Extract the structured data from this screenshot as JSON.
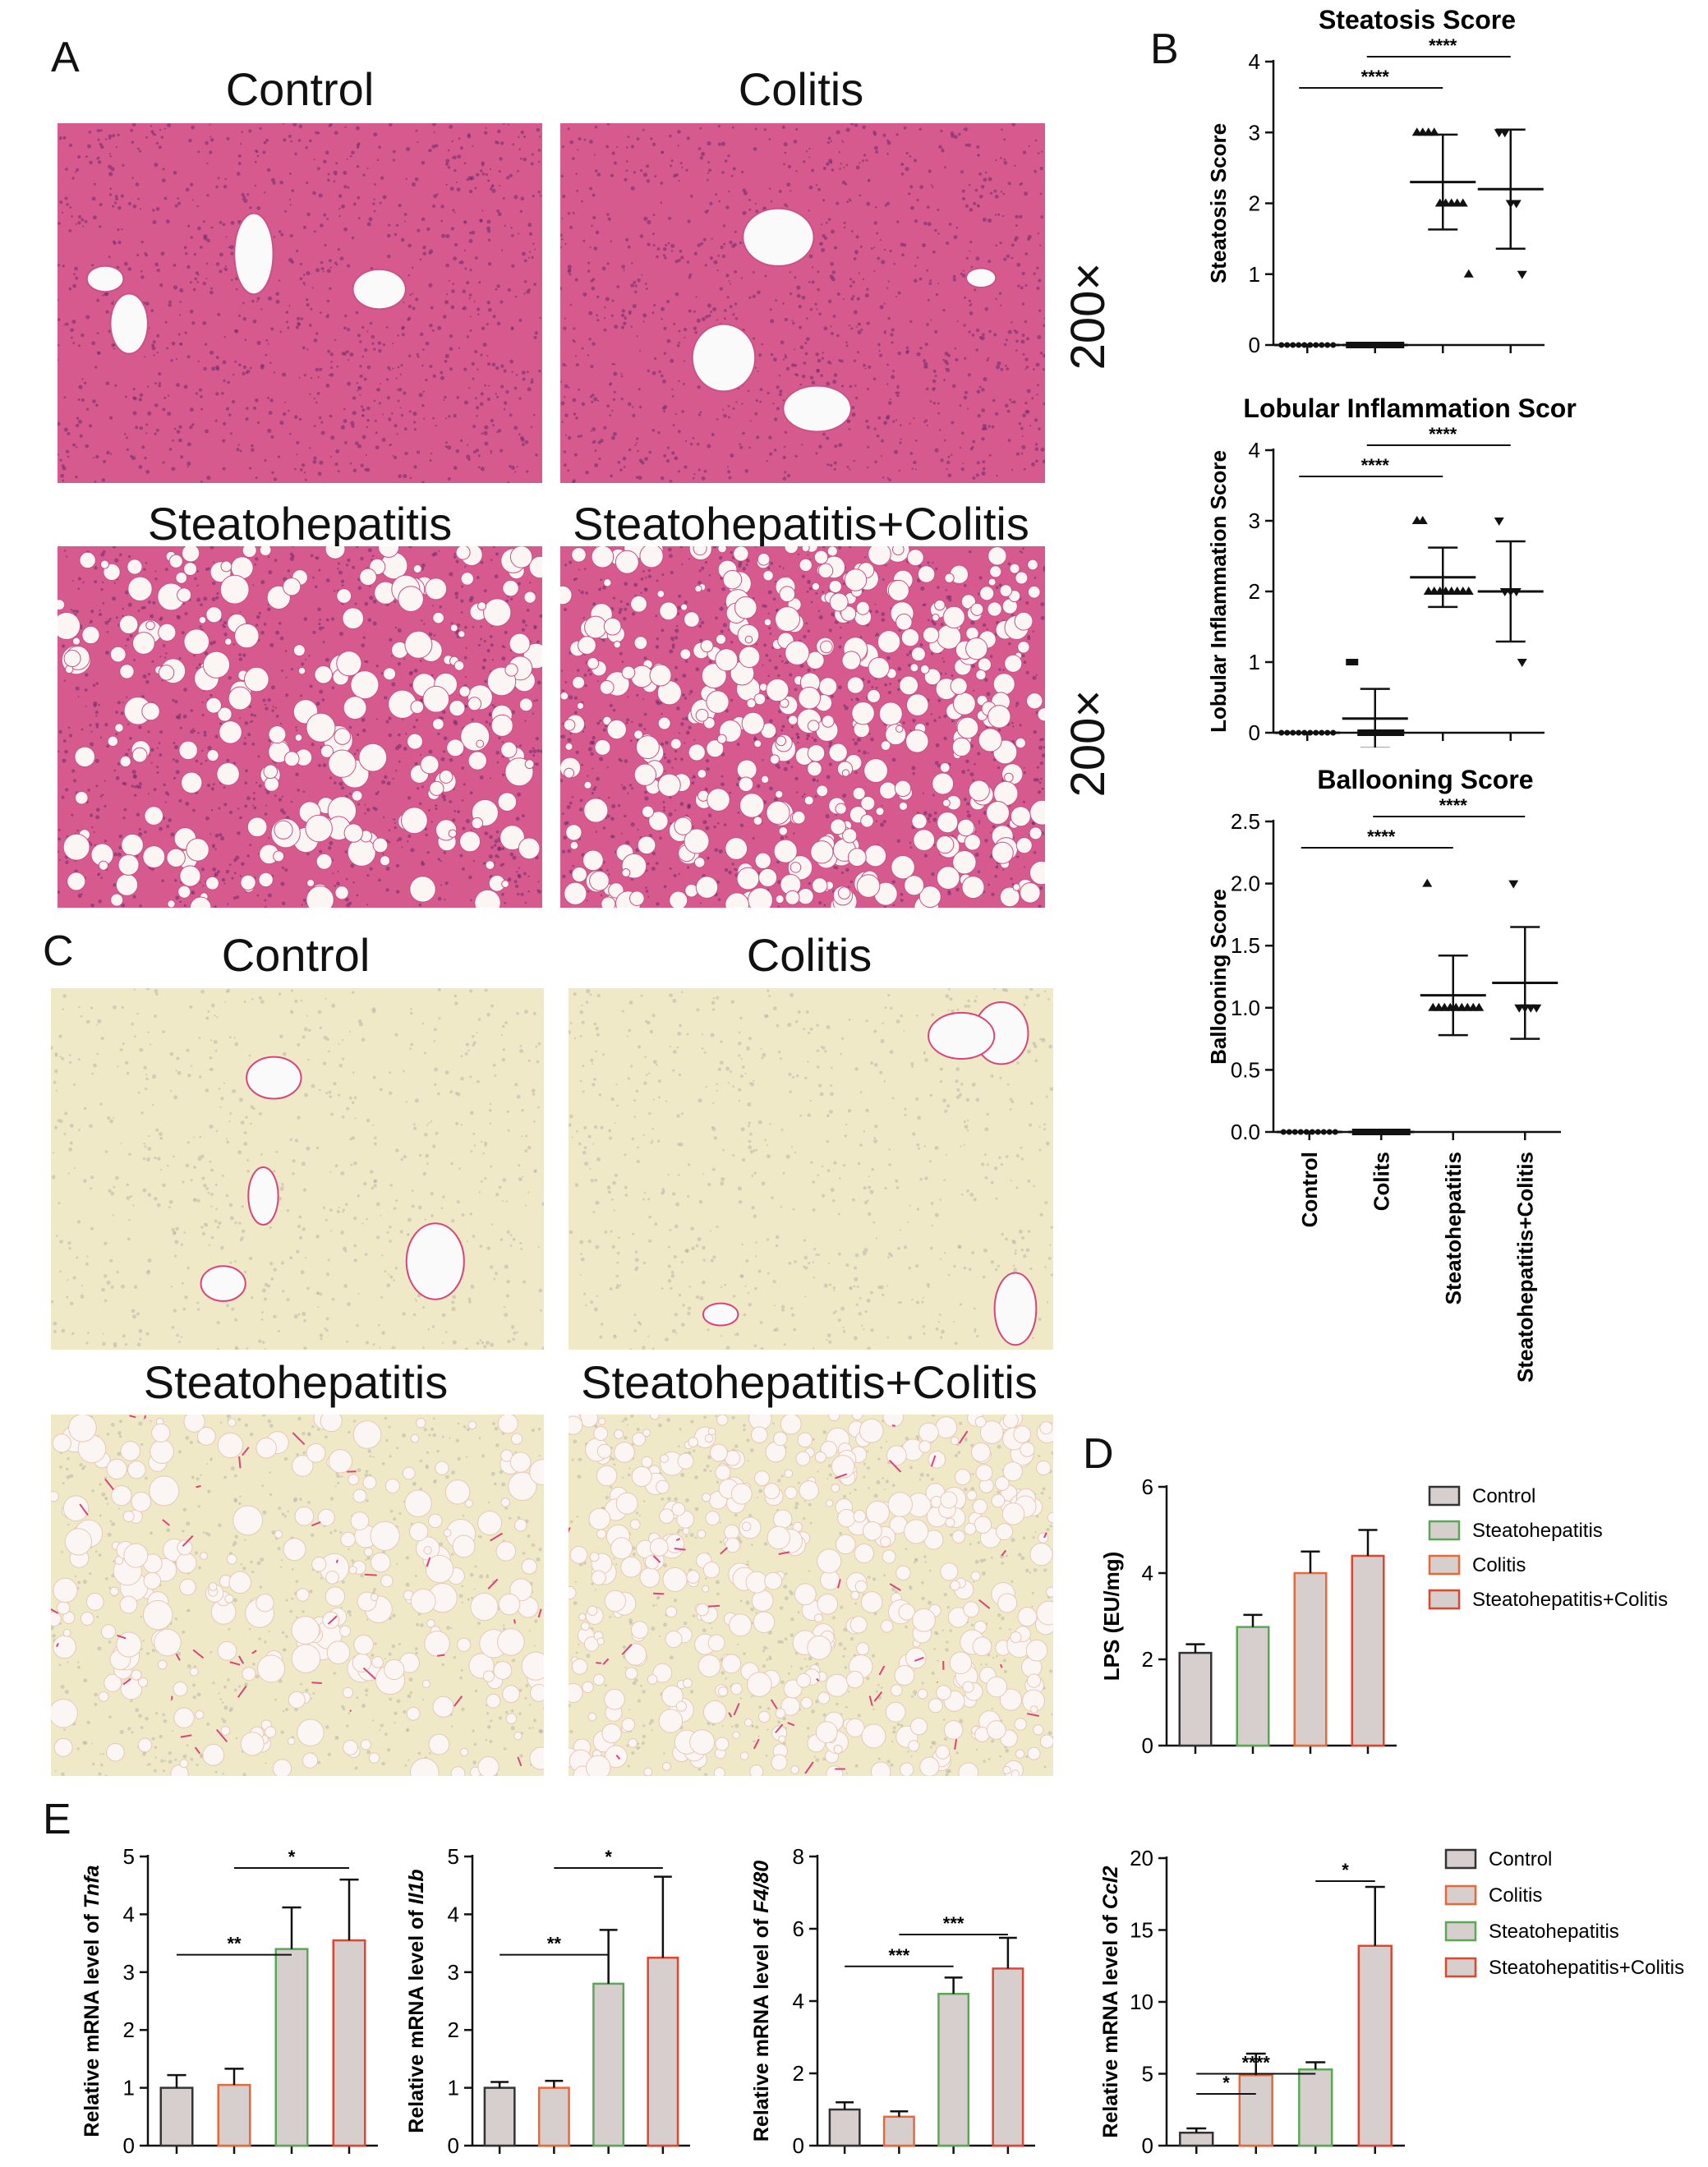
{
  "panels": {
    "A": {
      "letter": "A",
      "titles": [
        "Control",
        "Colitis",
        "Steatohepatitis",
        "Steatohepatitis+Colitis"
      ],
      "magnification": "200×"
    },
    "C": {
      "letter": "C",
      "titles": [
        "Control",
        "Colitis",
        "Steatohepatitis",
        "Steatohepatitis+Colitis"
      ]
    },
    "B": {
      "letter": "B"
    },
    "D": {
      "letter": "D"
    },
    "E": {
      "letter": "E"
    }
  },
  "colors": {
    "he_pink": "#d65a8e",
    "he_light": "#f2b7d0",
    "sirius_bg": "#efe9c8",
    "sirius_red": "#d9447a",
    "bar_fill": "#d6cfcd",
    "control_edge": "#333333",
    "steato_edge": "#5aa856",
    "colitis_edge": "#e8683a",
    "combo_edge": "#e0462f"
  },
  "chart_data": [
    {
      "id": "B1",
      "type": "scatter",
      "title": "Steatosis Score",
      "ylabel": "Steatosis Score",
      "ylim": [
        0,
        4
      ],
      "yticks": [
        "0",
        "1",
        "2",
        "3",
        "4"
      ],
      "categories": [
        "Control",
        "Colits",
        "Steatohepatitis",
        "Steatohepatitis+Colitis"
      ],
      "points": [
        [
          0,
          0,
          0,
          0,
          0,
          0,
          0,
          0,
          0,
          0
        ],
        [
          0,
          0,
          0,
          0,
          0,
          0,
          0,
          0,
          0,
          0
        ],
        [
          3,
          3,
          3,
          3,
          2,
          2,
          2,
          2,
          2,
          1
        ],
        [
          3,
          3,
          2,
          2,
          1
        ]
      ],
      "mean": [
        0,
        0,
        2.3,
        2.2
      ],
      "sd": [
        0,
        0,
        0.67,
        0.84
      ],
      "sig": [
        {
          "from": 0,
          "to": 2,
          "label": "****"
        },
        {
          "from": 1,
          "to": 3,
          "label": "****"
        }
      ]
    },
    {
      "id": "B2",
      "type": "scatter",
      "title": "Lobular Inflammation Score",
      "ylabel": "Lobular Inflammation Score",
      "ylim": [
        0,
        4
      ],
      "yticks": [
        "0",
        "1",
        "2",
        "3",
        "4"
      ],
      "categories": [
        "Control",
        "Colits",
        "Steatohepatitis",
        "Steatohepatitis+Colitis"
      ],
      "points": [
        [
          0,
          0,
          0,
          0,
          0,
          0,
          0,
          0,
          0,
          0
        ],
        [
          1,
          1,
          0,
          0,
          0,
          0,
          0,
          0,
          0,
          0
        ],
        [
          3,
          3,
          2,
          2,
          2,
          2,
          2,
          2,
          2,
          2
        ],
        [
          3,
          2,
          2,
          2,
          1
        ]
      ],
      "mean": [
        0,
        0.2,
        2.2,
        2.0
      ],
      "sd": [
        0,
        0.42,
        0.42,
        0.71
      ],
      "sig": [
        {
          "from": 0,
          "to": 2,
          "label": "****"
        },
        {
          "from": 1,
          "to": 3,
          "label": "****"
        }
      ]
    },
    {
      "id": "B3",
      "type": "scatter",
      "title": "Ballooning Score",
      "ylabel": "Ballooning Score",
      "ylim": [
        0,
        2.5
      ],
      "yticks": [
        "0.0",
        "0.5",
        "1.0",
        "1.5",
        "2.0",
        "2.5"
      ],
      "categories": [
        "Control",
        "Colits",
        "Steatohepatitis",
        "Steatohepatitis+Colitis"
      ],
      "points": [
        [
          0,
          0,
          0,
          0,
          0,
          0,
          0,
          0,
          0,
          0
        ],
        [
          0,
          0,
          0,
          0,
          0,
          0,
          0,
          0,
          0,
          0
        ],
        [
          2,
          1,
          1,
          1,
          1,
          1,
          1,
          1,
          1,
          1
        ],
        [
          2,
          1,
          1,
          1,
          1
        ]
      ],
      "mean": [
        0,
        0,
        1.1,
        1.2
      ],
      "sd": [
        0,
        0,
        0.32,
        0.45
      ],
      "sig": [
        {
          "from": 0,
          "to": 2,
          "label": "****"
        },
        {
          "from": 1,
          "to": 3,
          "label": "****"
        }
      ]
    },
    {
      "id": "D",
      "type": "bar",
      "ylabel": "LPS (EU/mg)",
      "ylim": [
        0,
        6
      ],
      "yticks": [
        "0",
        "2",
        "4",
        "6"
      ],
      "categories": [
        "Control",
        "Steatohepatitis",
        "Colitis",
        "Steatohepatitis+Colitis"
      ],
      "values": [
        2.15,
        2.75,
        4.0,
        4.4
      ],
      "errors": [
        0.2,
        0.28,
        0.5,
        0.6
      ],
      "legend": [
        "Control",
        "Steatohepatitis",
        "Colitis",
        "Steatohepatitis+Colitis"
      ]
    },
    {
      "id": "E1",
      "type": "bar",
      "ylabel_prefix": "Relative mRNA level of ",
      "ylabel_gene": "Tnfa",
      "ylim": [
        0,
        5
      ],
      "yticks": [
        "0",
        "1",
        "2",
        "3",
        "4",
        "5"
      ],
      "categories": [
        "Control",
        "Colitis",
        "Steatohepatitis",
        "Steatohepatitis+Colitis"
      ],
      "values": [
        1.0,
        1.05,
        3.4,
        3.55
      ],
      "errors": [
        0.22,
        0.28,
        0.72,
        1.05
      ],
      "sig": [
        {
          "from": 0,
          "to": 2,
          "label": "**"
        },
        {
          "from": 1,
          "to": 3,
          "label": "*"
        }
      ]
    },
    {
      "id": "E2",
      "type": "bar",
      "ylabel_prefix": "Relative mRNA level of ",
      "ylabel_gene": "Il1b",
      "ylim": [
        0,
        5
      ],
      "yticks": [
        "0",
        "1",
        "2",
        "3",
        "4",
        "5"
      ],
      "categories": [
        "Control",
        "Colitis",
        "Steatohepatitis",
        "Steatohepatitis+Colitis"
      ],
      "values": [
        1.0,
        1.0,
        2.8,
        3.25
      ],
      "errors": [
        0.1,
        0.12,
        0.93,
        1.4
      ],
      "sig": [
        {
          "from": 0,
          "to": 2,
          "label": "**"
        },
        {
          "from": 1,
          "to": 3,
          "label": "*"
        }
      ]
    },
    {
      "id": "E3",
      "type": "bar",
      "ylabel_prefix": "Relative mRNA level of ",
      "ylabel_gene": "F4/80",
      "ylim": [
        0,
        8
      ],
      "yticks": [
        "0",
        "2",
        "4",
        "6",
        "8"
      ],
      "categories": [
        "Control",
        "Colitis",
        "Steatohepatitis",
        "Steatohepatitis+Colitis"
      ],
      "values": [
        1.0,
        0.8,
        4.2,
        4.9
      ],
      "errors": [
        0.2,
        0.15,
        0.45,
        0.85
      ],
      "sig": [
        {
          "from": 0,
          "to": 2,
          "label": "***"
        },
        {
          "from": 1,
          "to": 3,
          "label": "***"
        }
      ]
    },
    {
      "id": "E4",
      "type": "bar",
      "ylabel_prefix": "Relative mRNA level of ",
      "ylabel_gene": "Ccl2",
      "ylim": [
        0,
        20
      ],
      "yticks": [
        "0",
        "5",
        "10",
        "15",
        "20"
      ],
      "categories": [
        "Control",
        "Colitis",
        "Steatohepatitis",
        "Steatohepatitis+Colitis"
      ],
      "values": [
        0.9,
        4.9,
        5.3,
        13.9
      ],
      "errors": [
        0.3,
        1.5,
        0.5,
        4.1
      ],
      "sig": [
        {
          "from": 0,
          "to": 1,
          "label": "*"
        },
        {
          "from": 0,
          "to": 2,
          "label": "****"
        },
        {
          "from": 2,
          "to": 3,
          "label": "*"
        }
      ],
      "legend": [
        "Control",
        "Colitis",
        "Steatohepatitis",
        "Steatohepatitis+Colitis"
      ]
    }
  ]
}
